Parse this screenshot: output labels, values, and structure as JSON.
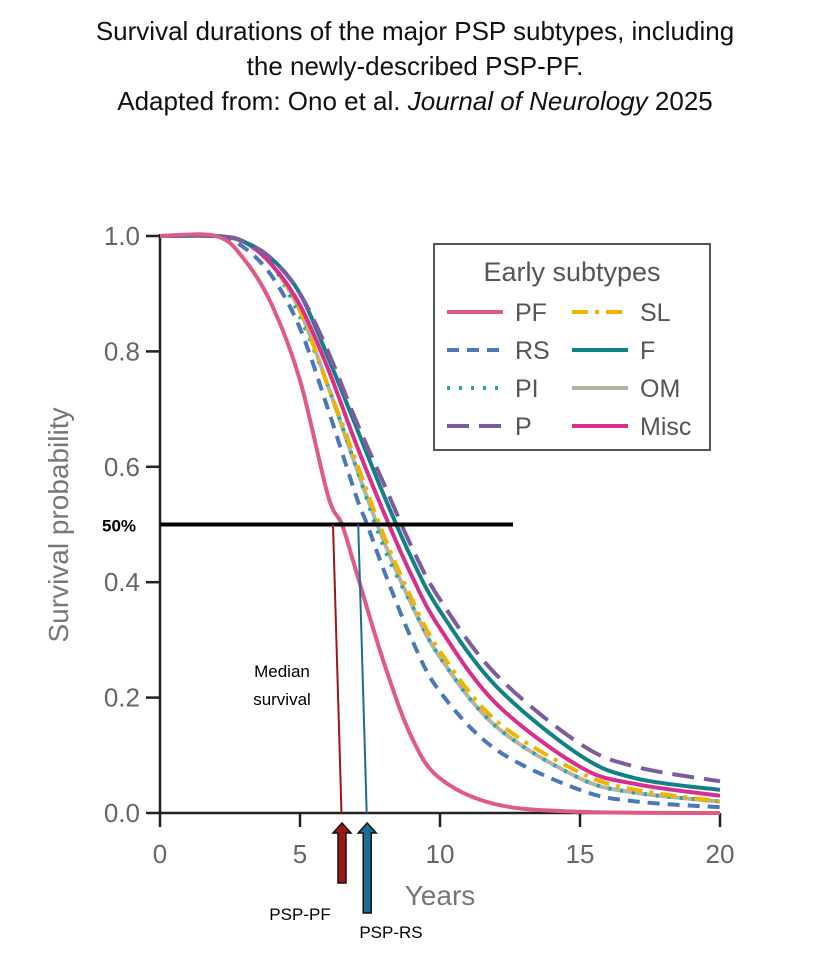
{
  "title": {
    "line1": "Survival durations of the major PSP subtypes, including",
    "line2": "the newly-described PSP-PF.",
    "line3_prefix": "Adapted from: Ono et al. ",
    "line3_journal": "Journal of Neurology",
    "line3_year": " 2025"
  },
  "chart_data": {
    "type": "line",
    "title": "",
    "xlabel": "Years",
    "ylabel": "Survival probability",
    "xlim": [
      0,
      20
    ],
    "ylim": [
      0,
      1
    ],
    "xticks": [
      0,
      5,
      10,
      15,
      20
    ],
    "xtick_labels": [
      "0",
      "5",
      "10",
      "15",
      "20"
    ],
    "yticks": [
      0,
      0.2,
      0.4,
      0.6,
      0.8,
      1.0
    ],
    "ytick_labels": [
      "0.0",
      "0.2",
      "0.4",
      "0.6",
      "0.8",
      "1.0"
    ],
    "legend": {
      "title": "Early subtypes",
      "position": "top-right"
    },
    "series": [
      {
        "name": "PF",
        "color": "#e05a87",
        "dash": "solid",
        "x": [
          0,
          2,
          3,
          4,
          5,
          6,
          6.5,
          7,
          8,
          9,
          10,
          12,
          15,
          20
        ],
        "y": [
          1.0,
          1.0,
          0.96,
          0.88,
          0.75,
          0.55,
          0.5,
          0.42,
          0.26,
          0.13,
          0.06,
          0.015,
          0.002,
          0.0
        ]
      },
      {
        "name": "RS",
        "color": "#4b78b8",
        "dash": "dash",
        "x": [
          0,
          2,
          3,
          4,
          5,
          6,
          7,
          7.4,
          8,
          9,
          10,
          12,
          15,
          17,
          20
        ],
        "y": [
          1.0,
          1.0,
          0.98,
          0.93,
          0.84,
          0.7,
          0.55,
          0.5,
          0.42,
          0.3,
          0.21,
          0.11,
          0.04,
          0.02,
          0.01
        ]
      },
      {
        "name": "PI",
        "color": "#22a8a8",
        "dash": "dot",
        "x": [
          0,
          2,
          3,
          4,
          5,
          6,
          7,
          8,
          9,
          10,
          12,
          15,
          17,
          20
        ],
        "y": [
          1.0,
          1.0,
          0.99,
          0.95,
          0.86,
          0.74,
          0.6,
          0.46,
          0.36,
          0.27,
          0.15,
          0.06,
          0.035,
          0.02
        ]
      },
      {
        "name": "P",
        "color": "#7e5b9e",
        "dash": "longdash",
        "x": [
          0,
          2,
          3,
          4,
          5,
          6,
          7,
          8,
          9,
          10,
          12,
          15,
          17,
          20
        ],
        "y": [
          1.0,
          1.0,
          0.99,
          0.96,
          0.9,
          0.8,
          0.68,
          0.57,
          0.46,
          0.37,
          0.24,
          0.12,
          0.08,
          0.055
        ]
      },
      {
        "name": "SL",
        "color": "#f0b400",
        "dash": "dashdot",
        "x": [
          0,
          2,
          3,
          4,
          5,
          6,
          7,
          8,
          9,
          10,
          12,
          15,
          17,
          20
        ],
        "y": [
          1.0,
          1.0,
          0.99,
          0.95,
          0.87,
          0.74,
          0.61,
          0.48,
          0.37,
          0.28,
          0.16,
          0.07,
          0.04,
          0.02
        ]
      },
      {
        "name": "F",
        "color": "#138088",
        "dash": "solid",
        "x": [
          0,
          2,
          3,
          4,
          5,
          6,
          7,
          8,
          9,
          10,
          12,
          15,
          17,
          20
        ],
        "y": [
          1.0,
          1.0,
          0.99,
          0.96,
          0.9,
          0.79,
          0.67,
          0.55,
          0.44,
          0.35,
          0.22,
          0.1,
          0.06,
          0.04
        ]
      },
      {
        "name": "OM",
        "color": "#b3b3a8",
        "dash": "solid",
        "x": [
          0,
          2,
          3,
          4,
          5,
          6,
          7,
          8,
          9,
          10,
          12,
          15,
          17,
          20
        ],
        "y": [
          1.0,
          1.0,
          0.99,
          0.95,
          0.87,
          0.74,
          0.6,
          0.47,
          0.36,
          0.27,
          0.15,
          0.06,
          0.035,
          0.02
        ]
      },
      {
        "name": "Misc",
        "color": "#d82e8e",
        "dash": "solid",
        "x": [
          0,
          2,
          3,
          4,
          5,
          6,
          7,
          8,
          9,
          10,
          12,
          15,
          17,
          20
        ],
        "y": [
          1.0,
          1.0,
          0.99,
          0.95,
          0.88,
          0.77,
          0.64,
          0.52,
          0.41,
          0.32,
          0.19,
          0.08,
          0.05,
          0.03
        ]
      }
    ],
    "annotations": {
      "threshold": {
        "label": "50%",
        "y": 0.5,
        "x_start": 0,
        "x_end": 12,
        "color": "#000000"
      },
      "median_label": [
        "Median",
        "survival"
      ],
      "medians": [
        {
          "name": "PF",
          "label": "PSP-PF",
          "x": 6.5,
          "color": "#a01515"
        },
        {
          "name": "RS",
          "label": "PSP-RS",
          "x": 7.4,
          "color": "#1c6d93"
        }
      ]
    }
  }
}
